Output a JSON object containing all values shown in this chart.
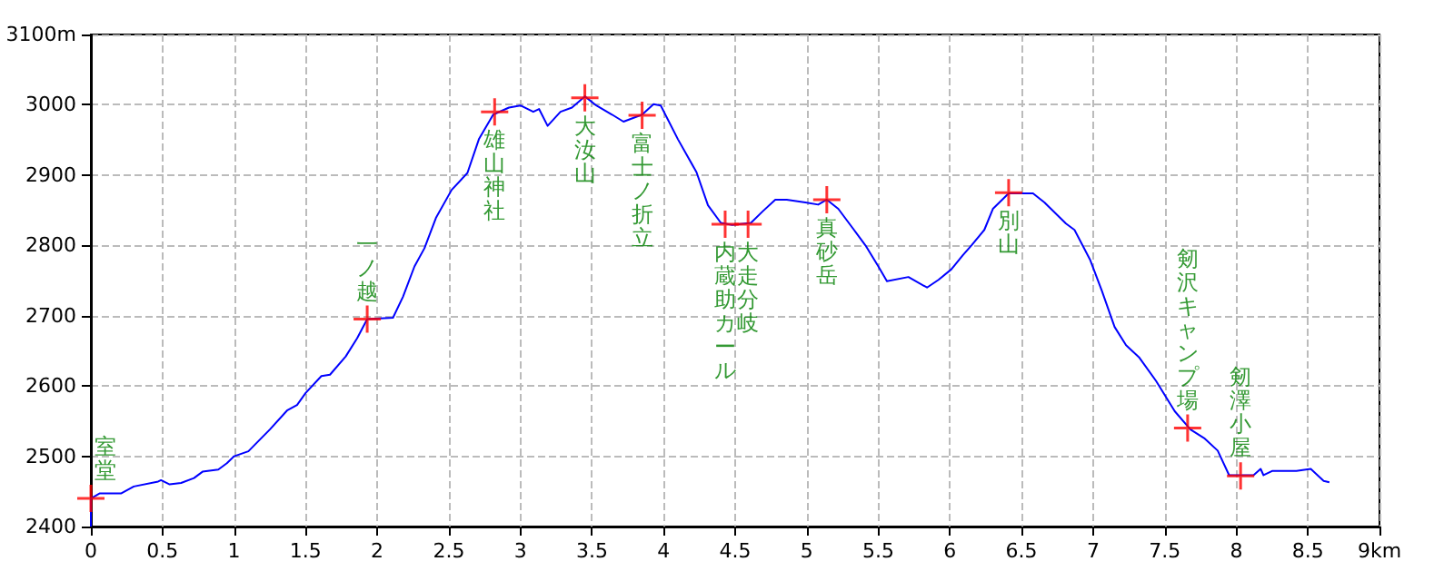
{
  "chart_data": {
    "type": "line",
    "xlim": [
      0,
      9
    ],
    "ylim": [
      2400,
      3100
    ],
    "xticks": [
      0,
      0.5,
      1,
      1.5,
      2,
      2.5,
      3,
      3.5,
      4,
      4.5,
      5,
      5.5,
      6,
      6.5,
      7,
      7.5,
      8,
      8.5,
      {
        "value": 9,
        "label": "9km"
      }
    ],
    "yticks": [
      2400,
      2500,
      2600,
      2700,
      2800,
      2900,
      3000,
      {
        "value": 3100,
        "label": "3100m"
      }
    ],
    "grid": true,
    "line_style": "solid",
    "series": [
      {
        "color": "#0000ff",
        "marker": "none",
        "x": [
          0,
          0,
          0.06,
          0.21,
          0.3,
          0.47,
          0.49,
          0.55,
          0.63,
          0.72,
          0.78,
          0.89,
          0.95,
          1.0,
          1.1,
          1.25,
          1.37,
          1.44,
          1.5,
          1.61,
          1.67,
          1.78,
          1.86,
          1.93,
          2.11,
          2.18,
          2.26,
          2.33,
          2.41,
          2.52,
          2.63,
          2.71,
          2.81,
          2.92,
          3.0,
          3.09,
          3.13,
          3.19,
          3.28,
          3.36,
          3.45,
          3.53,
          3.64,
          3.72,
          3.85,
          3.93,
          3.98,
          4.1,
          4.23,
          4.31,
          4.4,
          4.48,
          4.61,
          4.69,
          4.78,
          4.86,
          4.99,
          5.08,
          5.14,
          5.22,
          5.33,
          5.41,
          5.5,
          5.56,
          5.71,
          5.84,
          5.92,
          6.01,
          6.09,
          6.15,
          6.24,
          6.3,
          6.41,
          6.58,
          6.66,
          6.81,
          6.87,
          6.98,
          7.06,
          7.15,
          7.23,
          7.32,
          7.44,
          7.57,
          7.68,
          7.78,
          7.87,
          7.95,
          8.12,
          8.17,
          8.19,
          8.25,
          8.42,
          8.52,
          8.61,
          8.65
        ],
        "values": [
          2400,
          2440,
          2447,
          2447,
          2457,
          2464,
          2466,
          2460,
          2462,
          2469,
          2478,
          2481,
          2490,
          2500,
          2507,
          2538,
          2565,
          2573,
          2590,
          2614,
          2616,
          2642,
          2668,
          2695,
          2697,
          2727,
          2770,
          2796,
          2839,
          2879,
          2903,
          2951,
          2986,
          2996,
          2999,
          2990,
          2994,
          2970,
          2990,
          2996,
          3012,
          2999,
          2986,
          2976,
          2986,
          3001,
          2999,
          2951,
          2904,
          2857,
          2832,
          2829,
          2832,
          2848,
          2865,
          2865,
          2861,
          2858,
          2865,
          2852,
          2822,
          2800,
          2770,
          2749,
          2755,
          2740,
          2751,
          2766,
          2786,
          2800,
          2822,
          2852,
          2874,
          2874,
          2861,
          2831,
          2822,
          2779,
          2736,
          2684,
          2658,
          2641,
          2607,
          2564,
          2538,
          2525,
          2508,
          2473,
          2473,
          2482,
          2473,
          2479,
          2479,
          2482,
          2465,
          2463
        ]
      },
      {
        "type": "scatter",
        "color": "#ff0000",
        "marker": "cross",
        "x": [
          0,
          1.93,
          2.82,
          3.45,
          3.85,
          4.43,
          4.59,
          5.14,
          6.41,
          7.66,
          8.03
        ],
        "values": [
          2440,
          2695,
          2990,
          3010,
          2985,
          2830,
          2830,
          2865,
          2875,
          2540,
          2472
        ]
      }
    ],
    "annotations": [
      {
        "text": "室堂",
        "x": 0,
        "y": 2440
      },
      {
        "text": "一ノ越",
        "x": 1.93,
        "y": 2695
      },
      {
        "text": "雄山神社",
        "x": 2.82,
        "y": 2990
      },
      {
        "text": "大汝山",
        "x": 3.45,
        "y": 3010
      },
      {
        "text": "富士ノ折立",
        "x": 3.85,
        "y": 2985
      },
      {
        "text": "内蔵助カール",
        "x": 4.43,
        "y": 2830
      },
      {
        "text": "大走分岐",
        "x": 4.59,
        "y": 2830
      },
      {
        "text": "真砂岳",
        "x": 5.14,
        "y": 2865
      },
      {
        "text": "別山",
        "x": 6.41,
        "y": 2875
      },
      {
        "text": "剱沢キャンプ場",
        "x": 7.66,
        "y": 2540
      },
      {
        "text": "剱澤小屋",
        "x": 8.03,
        "y": 2472
      }
    ]
  }
}
